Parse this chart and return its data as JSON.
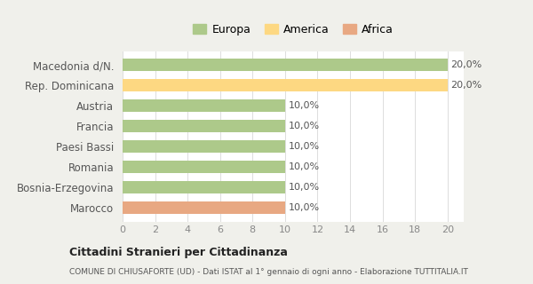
{
  "categories": [
    "Macedonia d/N.",
    "Rep. Dominicana",
    "Austria",
    "Francia",
    "Paesi Bassi",
    "Romania",
    "Bosnia-Erzegovina",
    "Marocco"
  ],
  "values": [
    20.0,
    20.0,
    10.0,
    10.0,
    10.0,
    10.0,
    10.0,
    10.0
  ],
  "colors": [
    "#adc98a",
    "#fdd882",
    "#adc98a",
    "#adc98a",
    "#adc98a",
    "#adc98a",
    "#adc98a",
    "#e8a882"
  ],
  "legend_labels": [
    "Europa",
    "America",
    "Africa"
  ],
  "legend_colors": [
    "#adc98a",
    "#fdd882",
    "#e8a882"
  ],
  "labels": [
    "20,0%",
    "20,0%",
    "10,0%",
    "10,0%",
    "10,0%",
    "10,0%",
    "10,0%",
    "10,0%"
  ],
  "title": "Cittadini Stranieri per Cittadinanza",
  "subtitle": "COMUNE DI CHIUSAFORTE (UD) - Dati ISTAT al 1° gennaio di ogni anno - Elaborazione TUTTITALIA.IT",
  "xlim": [
    0,
    21
  ],
  "xticks": [
    0,
    2,
    4,
    6,
    8,
    10,
    12,
    14,
    16,
    18,
    20
  ],
  "background_color": "#f0f0eb",
  "bar_background": "#ffffff"
}
